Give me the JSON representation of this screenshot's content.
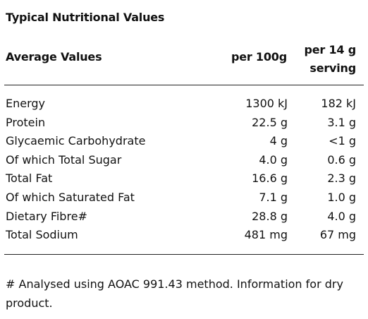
{
  "title": "Typical Nutritional Values",
  "header": {
    "label": "Average Values",
    "per_100g": "per 100g",
    "per_serving": "per 14 g serving"
  },
  "rows": [
    {
      "name": "Energy",
      "per_100g": "1300 kJ",
      "per_serving": "182 kJ"
    },
    {
      "name": "Protein",
      "per_100g": "22.5 g",
      "per_serving": "3.1 g"
    },
    {
      "name": "Glycaemic Carbohydrate",
      "per_100g": "4 g",
      "per_serving": "<1 g"
    },
    {
      "name": "Of which Total Sugar",
      "per_100g": "4.0 g",
      "per_serving": "0.6 g"
    },
    {
      "name": "Total Fat",
      "per_100g": "16.6 g",
      "per_serving": "2.3 g"
    },
    {
      "name": "Of which Saturated Fat",
      "per_100g": "7.1 g",
      "per_serving": "1.0 g"
    },
    {
      "name": "Dietary Fibre#",
      "per_100g": "28.8 g",
      "per_serving": "4.0 g"
    },
    {
      "name": "Total Sodium",
      "per_100g": "481 mg",
      "per_serving": "67 mg"
    }
  ],
  "footnote": "# Analysed using AOAC 991.43 method. Information for dry product."
}
